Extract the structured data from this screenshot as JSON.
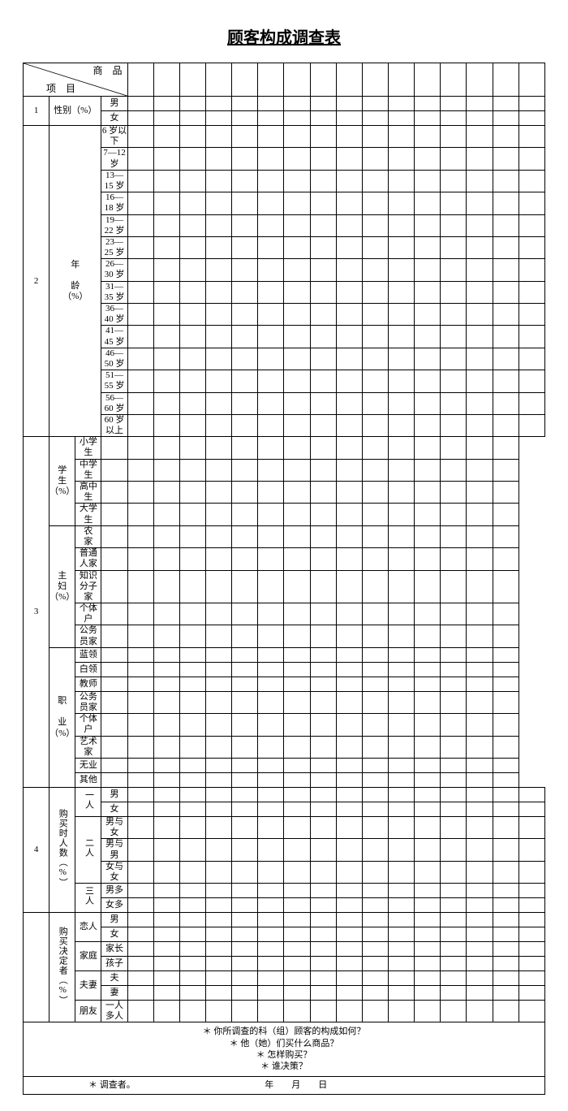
{
  "title": "顾客构成调查表",
  "header": {
    "top": "商　品",
    "bottom": "项　目"
  },
  "data_cols": 16,
  "sections": [
    {
      "num": "1",
      "cat_label": "性别（%）",
      "cat_colspan": 2,
      "groups": [
        {
          "sub": null,
          "items": [
            "男",
            "女"
          ]
        }
      ]
    },
    {
      "num": "2",
      "cat_label": "年\n\n龄\n（%）",
      "cat_colspan": 2,
      "groups": [
        {
          "sub": null,
          "items": [
            "6 岁以下",
            "7—12 岁",
            "13—15 岁",
            "16—18 岁",
            "19—22 岁",
            "23—25 岁",
            "26—30 岁",
            "31—35 岁",
            "36—40 岁",
            "41—45 岁",
            "46—50 岁",
            "51—55 岁",
            "56—60 岁",
            "60 岁以上"
          ]
        }
      ]
    },
    {
      "num": "3",
      "cat_label": null,
      "cat_colspan": 1,
      "groups": [
        {
          "sub": "学\n生（%）",
          "items": [
            "小学生",
            "中学生",
            "高中生",
            "大学生"
          ]
        },
        {
          "sub": "主\n妇\n（%）",
          "items": [
            "农　家",
            "普通人家",
            "知识分子家",
            "个体户",
            "公务员家"
          ]
        },
        {
          "sub": "职\n\n业（%）",
          "items": [
            "蓝领",
            "白领",
            "教师",
            "公务员家",
            "个体户",
            "艺术家",
            "无业",
            "其他"
          ]
        }
      ]
    },
    {
      "num": "4",
      "cat_label": "购买时人数（%）",
      "cat_vertical": true,
      "cat_colspan": 1,
      "groups": [
        {
          "sub": "一人",
          "sub_vertical": true,
          "items": [
            "男",
            "女"
          ]
        },
        {
          "sub": "二人",
          "sub_vertical": true,
          "items": [
            "男与女",
            "男与男",
            "女与女"
          ]
        },
        {
          "sub": "三人",
          "sub_vertical": true,
          "items": [
            "男多",
            "女多"
          ]
        }
      ]
    },
    {
      "num": "",
      "cat_label": "购买决定者（%）",
      "cat_vertical": true,
      "cat_colspan": 1,
      "groups": [
        {
          "sub": "恋人",
          "items": [
            "男",
            "女"
          ]
        },
        {
          "sub": "家庭",
          "items": [
            "家长",
            "孩子"
          ]
        },
        {
          "sub": "夫妻",
          "items": [
            "夫",
            "妻"
          ]
        },
        {
          "sub": "朋友",
          "items": [
            "一人多人"
          ]
        }
      ]
    }
  ],
  "footer_lines": [
    "＊ 你所调查的科（组）顾客的构成如何？",
    "＊ 他（她）们买什么商品？",
    "＊ 怎样购买？",
    "＊ 谁决策？"
  ],
  "footer_signoff": "＊ 调查者。　　　　　　　　　　　　　　　年　　月　　日"
}
